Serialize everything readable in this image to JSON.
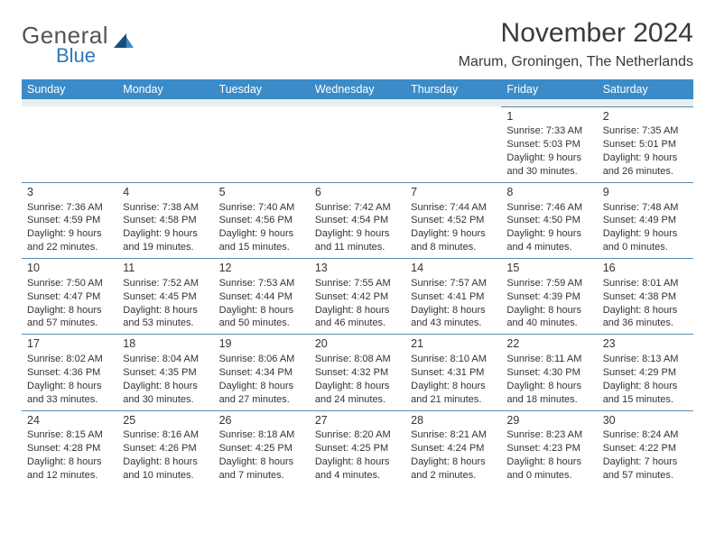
{
  "brand": {
    "word1": "General",
    "word2": "Blue"
  },
  "title": "November 2024",
  "location": "Marum, Groningen, The Netherlands",
  "colors": {
    "header_bg": "#3b8bc8",
    "header_text": "#ffffff",
    "spacer_bg": "#ebedef",
    "cell_border": "#5a8bb0",
    "text": "#333333",
    "logo_gray": "#555555",
    "logo_blue": "#2f79b9",
    "logo_shape_dark": "#1b4f78",
    "logo_shape_light": "#3b8bc8"
  },
  "columns": [
    "Sunday",
    "Monday",
    "Tuesday",
    "Wednesday",
    "Thursday",
    "Friday",
    "Saturday"
  ],
  "weeks": [
    [
      null,
      null,
      null,
      null,
      null,
      {
        "n": "1",
        "sr": "7:33 AM",
        "ss": "5:03 PM",
        "dl": "9 hours and 30 minutes."
      },
      {
        "n": "2",
        "sr": "7:35 AM",
        "ss": "5:01 PM",
        "dl": "9 hours and 26 minutes."
      }
    ],
    [
      {
        "n": "3",
        "sr": "7:36 AM",
        "ss": "4:59 PM",
        "dl": "9 hours and 22 minutes."
      },
      {
        "n": "4",
        "sr": "7:38 AM",
        "ss": "4:58 PM",
        "dl": "9 hours and 19 minutes."
      },
      {
        "n": "5",
        "sr": "7:40 AM",
        "ss": "4:56 PM",
        "dl": "9 hours and 15 minutes."
      },
      {
        "n": "6",
        "sr": "7:42 AM",
        "ss": "4:54 PM",
        "dl": "9 hours and 11 minutes."
      },
      {
        "n": "7",
        "sr": "7:44 AM",
        "ss": "4:52 PM",
        "dl": "9 hours and 8 minutes."
      },
      {
        "n": "8",
        "sr": "7:46 AM",
        "ss": "4:50 PM",
        "dl": "9 hours and 4 minutes."
      },
      {
        "n": "9",
        "sr": "7:48 AM",
        "ss": "4:49 PM",
        "dl": "9 hours and 0 minutes."
      }
    ],
    [
      {
        "n": "10",
        "sr": "7:50 AM",
        "ss": "4:47 PM",
        "dl": "8 hours and 57 minutes."
      },
      {
        "n": "11",
        "sr": "7:52 AM",
        "ss": "4:45 PM",
        "dl": "8 hours and 53 minutes."
      },
      {
        "n": "12",
        "sr": "7:53 AM",
        "ss": "4:44 PM",
        "dl": "8 hours and 50 minutes."
      },
      {
        "n": "13",
        "sr": "7:55 AM",
        "ss": "4:42 PM",
        "dl": "8 hours and 46 minutes."
      },
      {
        "n": "14",
        "sr": "7:57 AM",
        "ss": "4:41 PM",
        "dl": "8 hours and 43 minutes."
      },
      {
        "n": "15",
        "sr": "7:59 AM",
        "ss": "4:39 PM",
        "dl": "8 hours and 40 minutes."
      },
      {
        "n": "16",
        "sr": "8:01 AM",
        "ss": "4:38 PM",
        "dl": "8 hours and 36 minutes."
      }
    ],
    [
      {
        "n": "17",
        "sr": "8:02 AM",
        "ss": "4:36 PM",
        "dl": "8 hours and 33 minutes."
      },
      {
        "n": "18",
        "sr": "8:04 AM",
        "ss": "4:35 PM",
        "dl": "8 hours and 30 minutes."
      },
      {
        "n": "19",
        "sr": "8:06 AM",
        "ss": "4:34 PM",
        "dl": "8 hours and 27 minutes."
      },
      {
        "n": "20",
        "sr": "8:08 AM",
        "ss": "4:32 PM",
        "dl": "8 hours and 24 minutes."
      },
      {
        "n": "21",
        "sr": "8:10 AM",
        "ss": "4:31 PM",
        "dl": "8 hours and 21 minutes."
      },
      {
        "n": "22",
        "sr": "8:11 AM",
        "ss": "4:30 PM",
        "dl": "8 hours and 18 minutes."
      },
      {
        "n": "23",
        "sr": "8:13 AM",
        "ss": "4:29 PM",
        "dl": "8 hours and 15 minutes."
      }
    ],
    [
      {
        "n": "24",
        "sr": "8:15 AM",
        "ss": "4:28 PM",
        "dl": "8 hours and 12 minutes."
      },
      {
        "n": "25",
        "sr": "8:16 AM",
        "ss": "4:26 PM",
        "dl": "8 hours and 10 minutes."
      },
      {
        "n": "26",
        "sr": "8:18 AM",
        "ss": "4:25 PM",
        "dl": "8 hours and 7 minutes."
      },
      {
        "n": "27",
        "sr": "8:20 AM",
        "ss": "4:25 PM",
        "dl": "8 hours and 4 minutes."
      },
      {
        "n": "28",
        "sr": "8:21 AM",
        "ss": "4:24 PM",
        "dl": "8 hours and 2 minutes."
      },
      {
        "n": "29",
        "sr": "8:23 AM",
        "ss": "4:23 PM",
        "dl": "8 hours and 0 minutes."
      },
      {
        "n": "30",
        "sr": "8:24 AM",
        "ss": "4:22 PM",
        "dl": "7 hours and 57 minutes."
      }
    ]
  ],
  "labels": {
    "sunrise": "Sunrise: ",
    "sunset": "Sunset: ",
    "daylight": "Daylight: "
  }
}
